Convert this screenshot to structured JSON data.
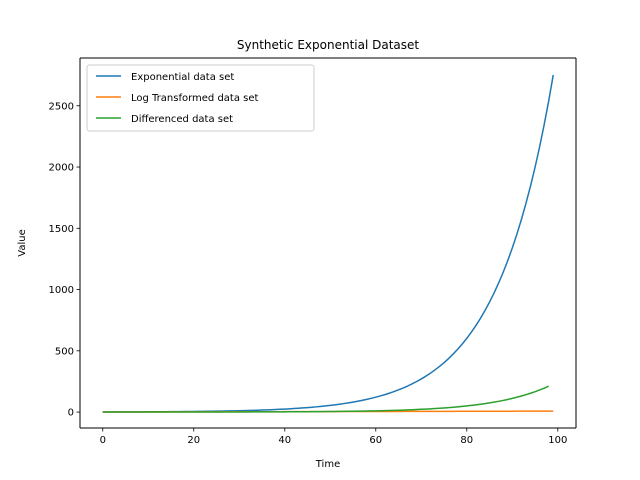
{
  "chart_data": {
    "type": "line",
    "title": "Synthetic Exponential Dataset",
    "xlabel": "Time",
    "ylabel": "Value",
    "xlim": [
      -5,
      104
    ],
    "ylim": [
      -130,
      2890
    ],
    "x_ticks": [
      0,
      20,
      40,
      60,
      80,
      100
    ],
    "y_ticks": [
      0,
      500,
      1000,
      1500,
      2000,
      2500
    ],
    "grid": false,
    "legend_position": "upper-left",
    "series": [
      {
        "name": "Exponential data set",
        "color": "#1f77b4",
        "formula": "exp(0.08*x)",
        "x_start": 0,
        "x_end": 99,
        "x_step": 1,
        "sample_points": [
          [
            0,
            1
          ],
          [
            20,
            5
          ],
          [
            40,
            25
          ],
          [
            60,
            122
          ],
          [
            80,
            602
          ],
          [
            99,
            2752
          ]
        ]
      },
      {
        "name": "Log Transformed data set",
        "color": "#ff7f0e",
        "formula": "0.08*x",
        "x_start": 0,
        "x_end": 99,
        "x_step": 1,
        "sample_points": [
          [
            0,
            0
          ],
          [
            50,
            4
          ],
          [
            99,
            7.9
          ]
        ]
      },
      {
        "name": "Differenced data set",
        "color": "#2ca02c",
        "formula": "exp(0.08*(x+1)) - exp(0.08*x)",
        "x_start": 0,
        "x_end": 98,
        "x_step": 1,
        "sample_points": [
          [
            0,
            0.08
          ],
          [
            40,
            2.1
          ],
          [
            60,
            10
          ],
          [
            80,
            50
          ],
          [
            98,
            210
          ]
        ]
      }
    ]
  }
}
